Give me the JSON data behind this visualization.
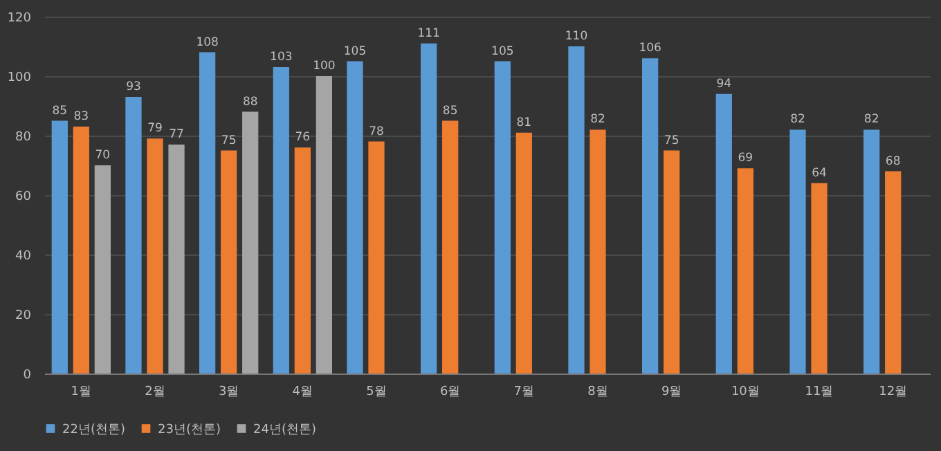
{
  "chart_data": {
    "type": "bar",
    "categories": [
      "1월",
      "2월",
      "3월",
      "4월",
      "5월",
      "6월",
      "7월",
      "8월",
      "9월",
      "10월",
      "11월",
      "12월"
    ],
    "series": [
      {
        "name": "22년(천톤)",
        "color": "#5b9bd5",
        "values": [
          85,
          93,
          108,
          103,
          105,
          111,
          105,
          110,
          106,
          94,
          82,
          82
        ]
      },
      {
        "name": "23년(천톤)",
        "color": "#ed7d31",
        "values": [
          83,
          79,
          75,
          76,
          78,
          85,
          81,
          82,
          75,
          69,
          64,
          68
        ]
      },
      {
        "name": "24년(천톤)",
        "color": "#a5a5a5",
        "values": [
          70,
          77,
          88,
          100,
          null,
          null,
          null,
          null,
          null,
          null,
          null,
          null
        ]
      }
    ],
    "ylim": [
      0,
      120
    ],
    "yticks": [
      0,
      20,
      40,
      60,
      80,
      100,
      120
    ],
    "grid": "y",
    "legend": "bottom",
    "data_labels": true
  }
}
